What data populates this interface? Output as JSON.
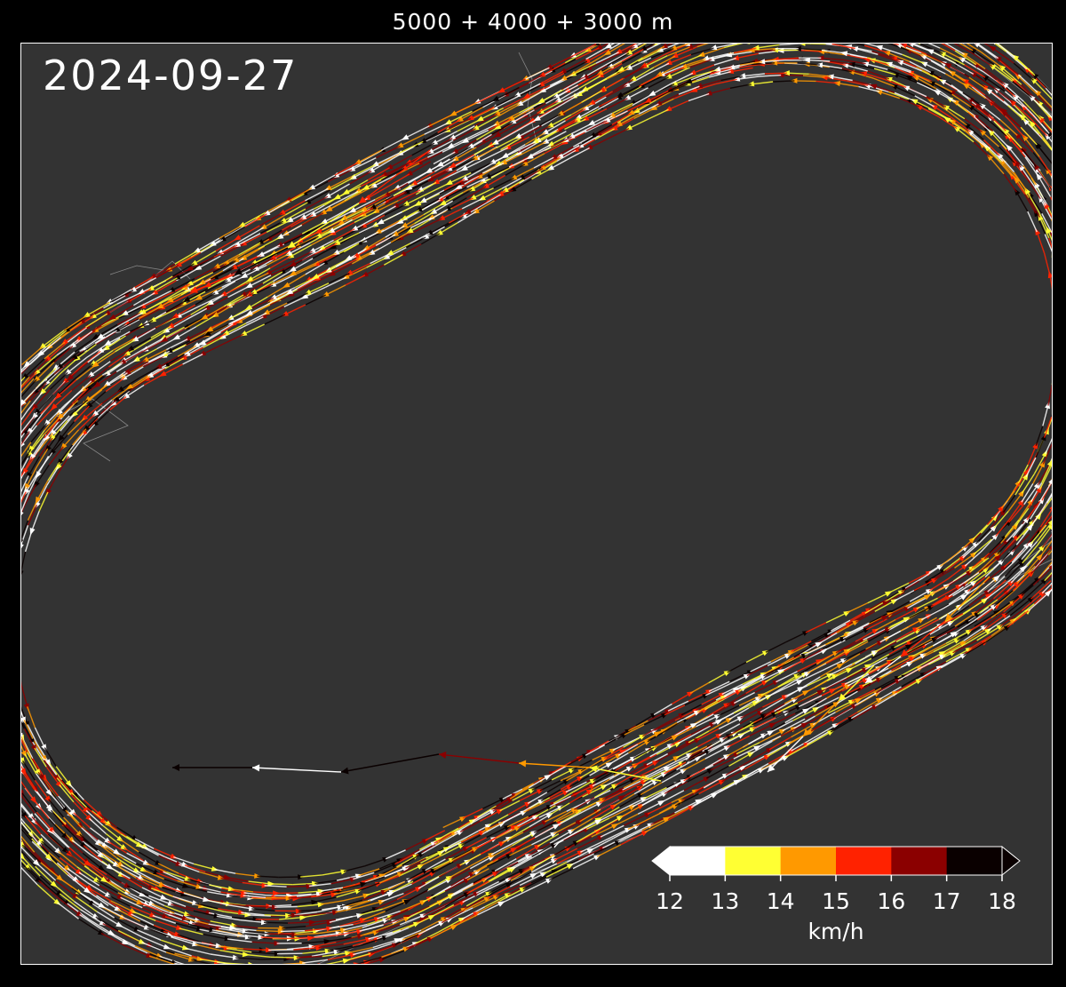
{
  "title": "5000 + 4000 + 3000 m",
  "date_label": "2024-09-27",
  "chart_data": {
    "type": "vector_track",
    "quantity": "speed",
    "colorbar": {
      "unit": "km/h",
      "ticks": [
        12,
        13,
        14,
        15,
        16,
        17,
        18
      ],
      "extend": "both",
      "bins": [
        {
          "from": 12,
          "to": 13,
          "color": "#ffffff"
        },
        {
          "from": 13,
          "to": 14,
          "color": "#ffff33"
        },
        {
          "from": 14,
          "to": 15,
          "color": "#ff9900"
        },
        {
          "from": 15,
          "to": 16,
          "color": "#ff2200"
        },
        {
          "from": 16,
          "to": 17,
          "color": "#8b0000"
        },
        {
          "from": 17,
          "to": 18,
          "color": "#0a0000"
        }
      ],
      "under_color": "#ffffff",
      "over_color": "#0a0000"
    },
    "background_color": "#333333",
    "track_shape": "oval running track",
    "direction": "counter-clockwise"
  }
}
